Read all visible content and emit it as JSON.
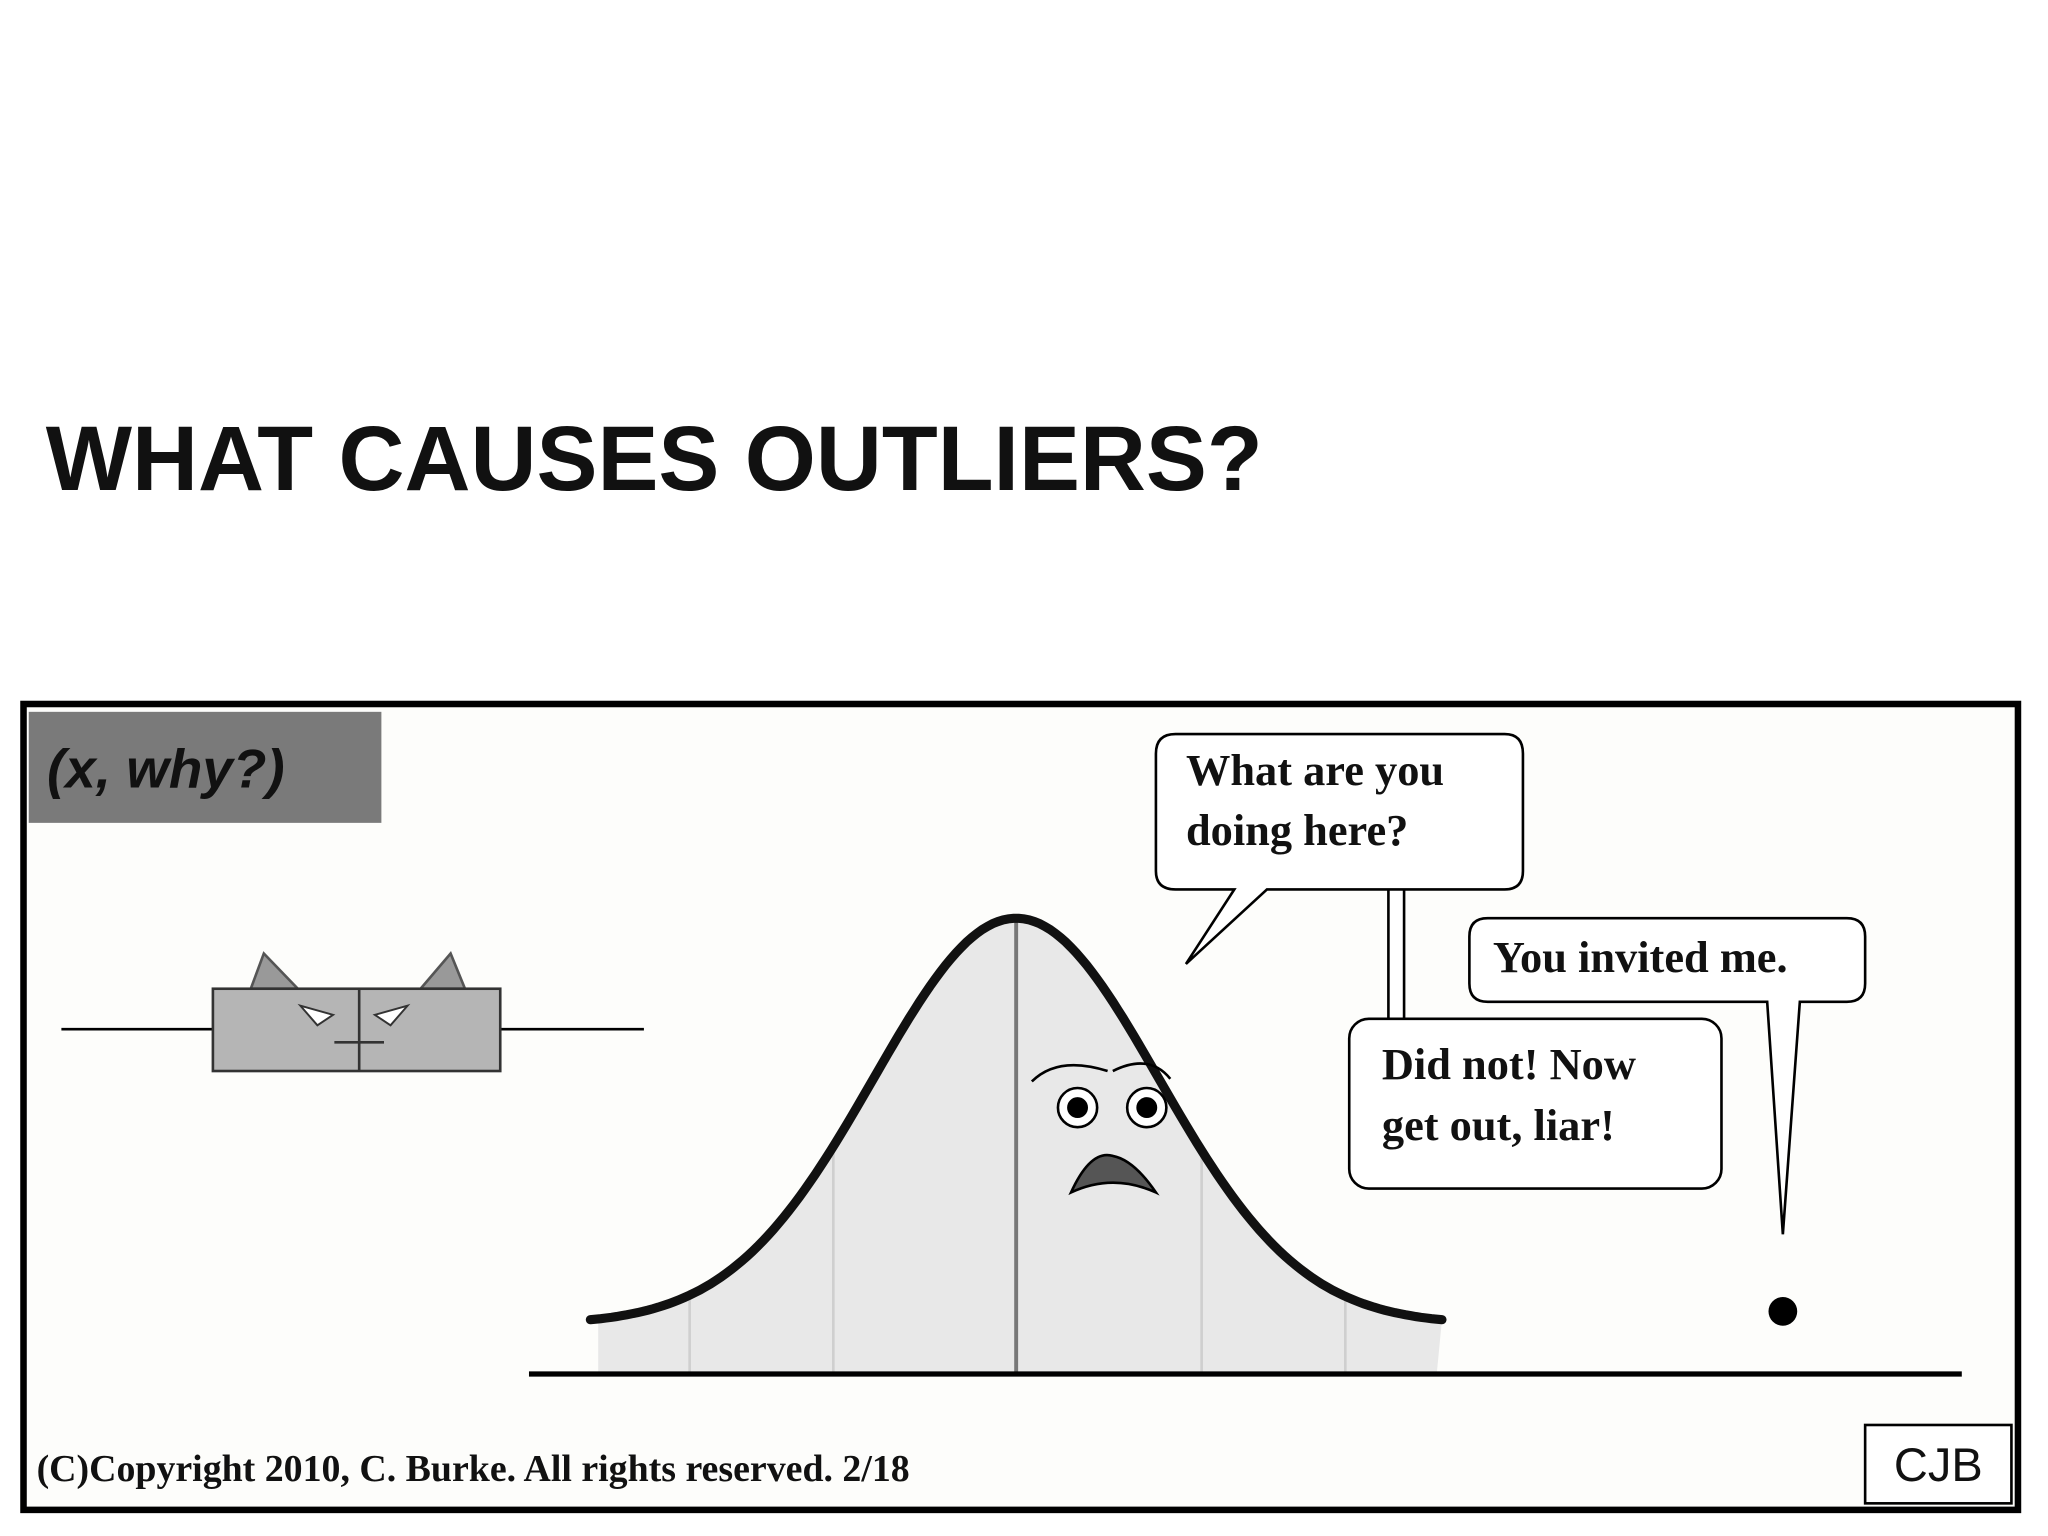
{
  "slide": {
    "title": "WHAT CAUSES OUTLIERS?"
  },
  "comic": {
    "panel_label": "(x, why?)",
    "bubbles": [
      {
        "lines": [
          "What are you",
          "doing here?"
        ]
      },
      {
        "lines": [
          "You invited me."
        ]
      },
      {
        "lines": [
          "Did not! Now",
          "get out, liar!"
        ]
      }
    ],
    "copyright": "(C)Copyright 2010, C. Burke. All rights reserved. 2/18",
    "signature": "CJB"
  }
}
